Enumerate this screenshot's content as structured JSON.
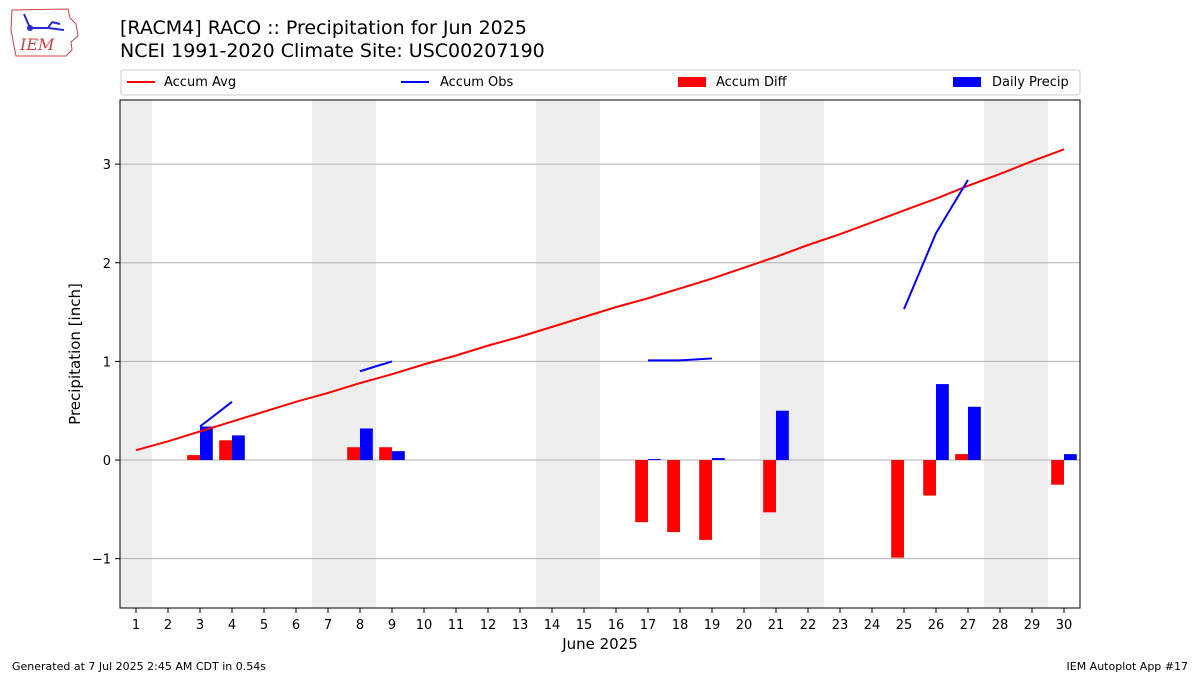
{
  "header": {
    "title_line1": "[RACM4] RACO :: Precipitation for Jun 2025",
    "title_line2": "NCEI 1991-2020 Climate Site: USC00207190"
  },
  "logo": {
    "text": "IEM",
    "icon": "iem-logo-icon"
  },
  "footer": {
    "left": "Generated at 7 Jul 2025 2:45 AM CDT in 0.54s",
    "right": "IEM Autoplot App #17"
  },
  "colors": {
    "avg": "#ff0000",
    "obs": "#0000ff",
    "diff": "#ff0000",
    "precip": "#0000ff",
    "weekend": "#eeeeee",
    "grid": "#b0b0b0"
  },
  "chart_data": {
    "type": "bar",
    "xlabel": "June 2025",
    "ylabel": "Precipitation [inch]",
    "ylim": [
      -1.5,
      3.65
    ],
    "yticks": [
      -1,
      0,
      1,
      2,
      3
    ],
    "ytick_labels": [
      "−1",
      "0",
      "1",
      "2",
      "3"
    ],
    "days": [
      1,
      2,
      3,
      4,
      5,
      6,
      7,
      8,
      9,
      10,
      11,
      12,
      13,
      14,
      15,
      16,
      17,
      18,
      19,
      20,
      21,
      22,
      23,
      24,
      25,
      26,
      27,
      28,
      29,
      30
    ],
    "day_labels": [
      "1",
      "2",
      "3",
      "4",
      "5",
      "6",
      "7",
      "8",
      "9",
      "10",
      "11",
      "12",
      "13",
      "14",
      "15",
      "16",
      "17",
      "18",
      "19",
      "20",
      "21",
      "22",
      "23",
      "24",
      "25",
      "26",
      "27",
      "28",
      "29",
      "30"
    ],
    "weekend_days": [
      1,
      7,
      8,
      14,
      15,
      21,
      22,
      28,
      29
    ],
    "grid": "horizontal",
    "legend": {
      "placement": "top",
      "entries": [
        "Accum Avg",
        "Accum Obs",
        "Accum Diff",
        "Daily Precip"
      ]
    },
    "series": [
      {
        "name": "Accum Avg",
        "kind": "line",
        "values": [
          0.1,
          0.19,
          0.29,
          0.39,
          0.49,
          0.59,
          0.68,
          0.78,
          0.87,
          0.97,
          1.06,
          1.16,
          1.25,
          1.35,
          1.45,
          1.55,
          1.64,
          1.74,
          1.84,
          1.95,
          2.06,
          2.18,
          2.29,
          2.41,
          2.53,
          2.65,
          2.78,
          2.9,
          3.03,
          3.15
        ]
      },
      {
        "name": "Accum Obs",
        "kind": "line",
        "segments": [
          {
            "days": [
              3,
              4
            ],
            "values": [
              0.34,
              0.59
            ]
          },
          {
            "days": [
              8,
              9
            ],
            "values": [
              0.9,
              1.0
            ]
          },
          {
            "days": [
              17,
              18,
              19
            ],
            "values": [
              1.01,
              1.01,
              1.03
            ]
          },
          {
            "days": [
              25,
              26,
              27
            ],
            "values": [
              1.53,
              2.3,
              2.84
            ]
          }
        ]
      },
      {
        "name": "Accum Diff",
        "kind": "bar",
        "values": [
          0,
          0,
          0.05,
          0.2,
          0,
          0,
          0,
          0.13,
          0.13,
          0,
          0,
          0,
          0,
          0,
          0,
          0,
          -0.63,
          -0.73,
          -0.81,
          0,
          -0.53,
          0,
          0,
          0,
          -0.99,
          -0.36,
          0.06,
          0,
          0,
          -0.25
        ]
      },
      {
        "name": "Daily Precip",
        "kind": "bar",
        "values": [
          0,
          0,
          0.34,
          0.25,
          0,
          0,
          0,
          0.32,
          0.09,
          0,
          0,
          0,
          0,
          0,
          0,
          0,
          0.01,
          0,
          0.02,
          0,
          0.5,
          0,
          0,
          0,
          0,
          0.77,
          0.54,
          0,
          0,
          0.06
        ]
      }
    ]
  }
}
